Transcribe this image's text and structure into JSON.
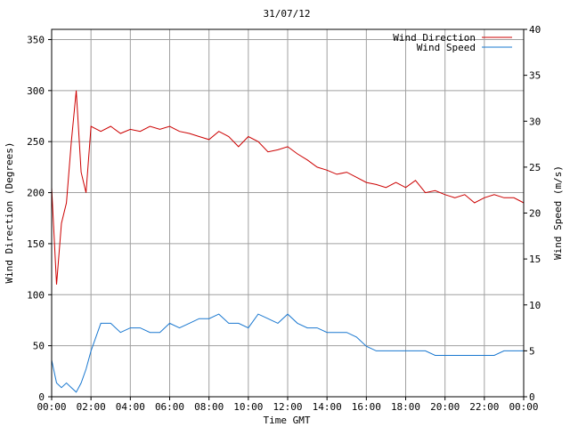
{
  "chart_data": {
    "type": "line",
    "title": "31/07/12",
    "xlabel": "Time GMT",
    "ylabel_left": "Wind Direction (Degrees)",
    "ylabel_right": "Wind Speed (m/s)",
    "x_ticks": [
      "00:00",
      "02:00",
      "04:00",
      "06:00",
      "08:00",
      "10:00",
      "12:00",
      "14:00",
      "16:00",
      "18:00",
      "20:00",
      "22:00",
      "00:00"
    ],
    "x_range_hours": [
      0,
      24
    ],
    "y_left_ticks": [
      "0",
      "50",
      "100",
      "150",
      "200",
      "250",
      "300",
      "350"
    ],
    "y_left_range": [
      0,
      360
    ],
    "y_right_ticks": [
      "0",
      "5",
      "10",
      "15",
      "20",
      "25",
      "30",
      "35",
      "40"
    ],
    "y_right_range": [
      0,
      40
    ],
    "grid": true,
    "legend_position": "top-right",
    "series": [
      {
        "name": "Wind Direction",
        "axis": "left",
        "color": "#cc0000",
        "x_hours": [
          0,
          0.25,
          0.5,
          0.75,
          1,
          1.25,
          1.5,
          1.75,
          2,
          2.5,
          3,
          3.5,
          4,
          4.5,
          5,
          5.5,
          6,
          6.5,
          7,
          7.5,
          8,
          8.5,
          9,
          9.5,
          10,
          10.5,
          11,
          11.5,
          12,
          12.5,
          13,
          13.5,
          14,
          14.5,
          15,
          15.5,
          16,
          16.5,
          17,
          17.5,
          18,
          18.5,
          19,
          19.5,
          20,
          20.5,
          21,
          21.5,
          22,
          22.5,
          23,
          23.5,
          24
        ],
        "values": [
          205,
          110,
          170,
          190,
          250,
          300,
          220,
          200,
          265,
          260,
          265,
          258,
          262,
          260,
          265,
          262,
          265,
          260,
          258,
          255,
          252,
          260,
          255,
          245,
          255,
          250,
          240,
          242,
          245,
          238,
          232,
          225,
          222,
          218,
          220,
          215,
          210,
          208,
          205,
          210,
          205,
          212,
          200,
          202,
          198,
          195,
          198,
          190,
          195,
          198,
          195,
          195,
          190
        ]
      },
      {
        "name": "Wind Speed",
        "axis": "right",
        "color": "#1a78d0",
        "x_hours": [
          0,
          0.25,
          0.5,
          0.75,
          1,
          1.25,
          1.5,
          1.75,
          2,
          2.5,
          3,
          3.5,
          4,
          4.5,
          5,
          5.5,
          6,
          6.5,
          7,
          7.5,
          8,
          8.5,
          9,
          9.5,
          10,
          10.5,
          11,
          11.5,
          12,
          12.5,
          13,
          13.5,
          14,
          14.5,
          15,
          15.5,
          16,
          16.5,
          17,
          17.5,
          18,
          18.5,
          19,
          19.5,
          20,
          20.5,
          21,
          21.5,
          22,
          22.5,
          23,
          23.5,
          24
        ],
        "values": [
          4,
          1.5,
          1,
          1.5,
          1,
          0.5,
          1.5,
          3,
          5,
          8,
          8,
          7,
          7.5,
          7.5,
          7,
          7,
          8,
          7.5,
          8,
          8.5,
          8.5,
          9,
          8,
          8,
          7.5,
          9,
          8.5,
          8,
          9,
          8,
          7.5,
          7.5,
          7,
          7,
          7,
          6.5,
          5.5,
          5,
          5,
          5,
          5,
          5,
          5,
          4.5,
          4.5,
          4.5,
          4.5,
          4.5,
          4.5,
          4.5,
          5,
          5,
          5
        ]
      }
    ]
  }
}
